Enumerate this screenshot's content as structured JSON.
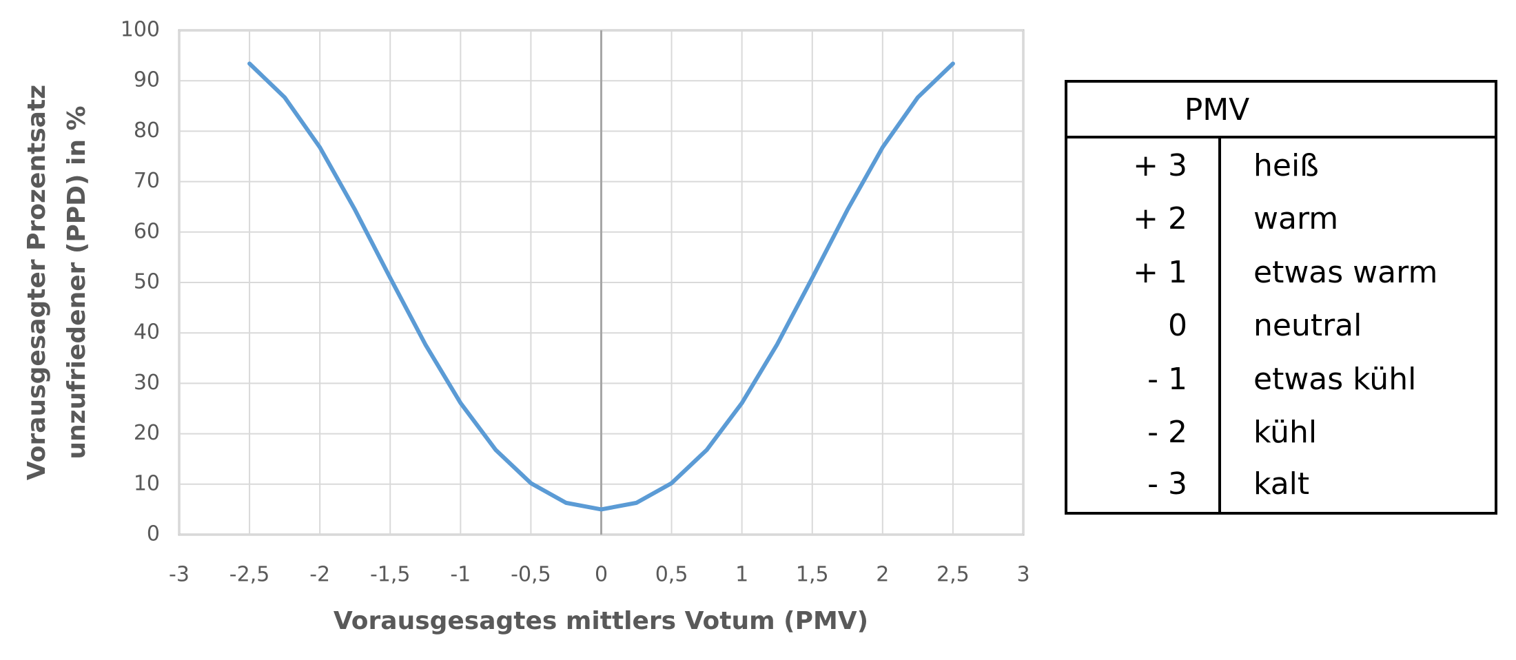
{
  "chart_data": {
    "type": "line",
    "x_label": "Vorausgesagtes mittlers Votum (PMV)",
    "y_label": [
      "Vorausgesagter Prozentsatz",
      "unzufriedener (PPD) in %"
    ],
    "x": [
      -2.5,
      -2.25,
      -2,
      -1.75,
      -1.5,
      -1.25,
      -1,
      -0.75,
      -0.5,
      -0.25,
      0,
      0.25,
      0.5,
      0.75,
      1,
      1.25,
      1.5,
      1.75,
      2,
      2.25,
      2.5
    ],
    "series": [
      {
        "name": "PPD",
        "color": "#5b9bd5",
        "values": [
          93.4,
          86.7,
          76.8,
          64.4,
          50.9,
          37.7,
          26.1,
          16.8,
          10.2,
          6.3,
          5,
          6.3,
          10.2,
          16.8,
          26.1,
          37.7,
          50.9,
          64.4,
          76.8,
          86.7,
          93.4
        ]
      }
    ],
    "xlim": [
      -3,
      3
    ],
    "xticks": [
      -3,
      {
        "value": -2.5,
        "label": "-2,5"
      },
      -2,
      {
        "value": -1.5,
        "label": "-1,5"
      },
      -1,
      {
        "value": -0.5,
        "label": "-0,5"
      },
      0,
      {
        "value": 0.5,
        "label": "0,5"
      },
      1,
      {
        "value": 1.5,
        "label": "1,5"
      },
      2,
      {
        "value": 2.5,
        "label": "2,5"
      },
      3
    ],
    "ylim": [
      0,
      100
    ],
    "yticks": [
      0,
      10,
      20,
      30,
      40,
      50,
      60,
      70,
      80,
      90,
      100
    ],
    "grid": true
  },
  "table": {
    "header": "PMV",
    "rows": [
      [
        "+ 3",
        "heiß"
      ],
      [
        "+ 2",
        "warm"
      ],
      [
        "+ 1",
        "etwas warm"
      ],
      [
        "0",
        "neutral"
      ],
      [
        "- 1",
        "etwas kühl"
      ],
      [
        "- 2",
        "kühl"
      ],
      [
        "- 3",
        "kalt"
      ]
    ]
  }
}
